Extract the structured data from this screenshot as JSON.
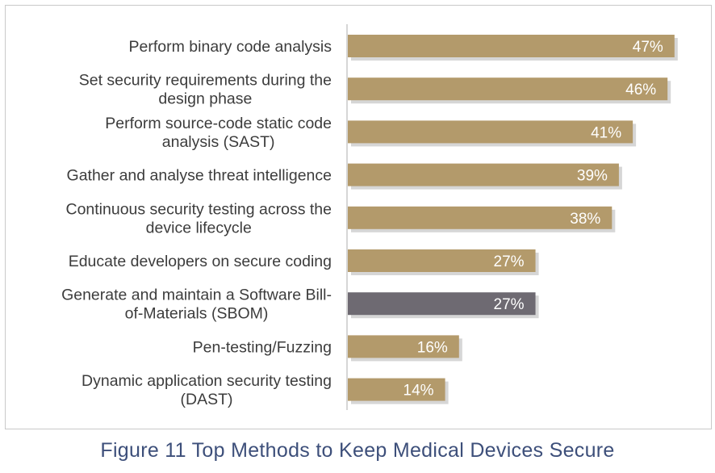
{
  "caption": "Figure 11 Top Methods to Keep Medical Devices Secure",
  "colors": {
    "bar": "#b39a6b",
    "highlight_bar": "#6e6a72",
    "shadow": "#b5b5b5",
    "axis": "#c8c8c8",
    "label": "#3c3c3c",
    "value_label": "#ffffff",
    "frame": "#c9c9c9"
  },
  "chart_data": {
    "type": "bar",
    "orientation": "horizontal",
    "categories": [
      [
        "Perform binary code analysis"
      ],
      [
        "Set security requirements during the",
        "design phase"
      ],
      [
        "Perform source-code static code",
        "analysis (SAST)"
      ],
      [
        "Gather and analyse threat intelligence"
      ],
      [
        "Continuous security testing across the",
        "device lifecycle"
      ],
      [
        "Educate developers on secure coding"
      ],
      [
        "Generate and maintain a Software Bill-",
        "of-Materials (SBOM)"
      ],
      [
        "Pen-testing/Fuzzing"
      ],
      [
        "Dynamic application security testing",
        "(DAST)"
      ]
    ],
    "values": [
      47,
      46,
      41,
      39,
      38,
      27,
      27,
      16,
      14
    ],
    "value_labels": [
      "47%",
      "46%",
      "41%",
      "39%",
      "38%",
      "27%",
      "27%",
      "16%",
      "14%"
    ],
    "highlight_index": 6,
    "xlim": [
      0,
      50
    ],
    "grid": false,
    "legend": "none"
  }
}
